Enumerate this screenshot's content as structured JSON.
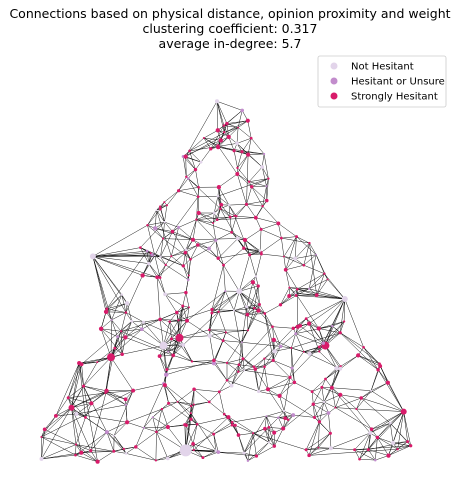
{
  "chart_data": {
    "type": "scatter",
    "title": "Connections based on physical distance, opinion proximity and weight",
    "subtitle_lines": [
      "clustering coefficient: 0.317",
      "average in-degree: 5.7"
    ],
    "xlabel": "",
    "ylabel": "",
    "axes_visible": false,
    "grid": false,
    "legend_placement": "top-right",
    "edge_color": "#000000",
    "categories": [
      {
        "name": "Not Hesitant",
        "color": "#e2d4ea"
      },
      {
        "name": "Hesitant or Unsure",
        "color": "#c28ccc"
      },
      {
        "name": "Strongly Hesitant",
        "color": "#d81b6a"
      }
    ],
    "layout": "triangle",
    "triangle_vertices": [
      [
        0.0,
        0.0
      ],
      [
        1.0,
        0.0
      ],
      [
        0.5,
        1.0
      ]
    ],
    "hubs": [
      {
        "x": 0.38,
        "y": 0.32,
        "category": "Strongly Hesitant",
        "size": 4
      },
      {
        "x": 0.53,
        "y": 0.44,
        "category": "Not Hesitant",
        "size": 3
      },
      {
        "x": 0.34,
        "y": 0.3,
        "category": "Not Hesitant",
        "size": 4
      },
      {
        "x": 0.21,
        "y": 0.27,
        "category": "Strongly Hesitant",
        "size": 4
      },
      {
        "x": 0.39,
        "y": 0.03,
        "category": "Not Hesitant",
        "size": 6
      },
      {
        "x": 0.17,
        "y": 0.53,
        "category": "Not Hesitant",
        "size": 3
      },
      {
        "x": 0.74,
        "y": 0.3,
        "category": "Strongly Hesitant",
        "size": 4
      },
      {
        "x": 0.79,
        "y": 0.42,
        "category": "Not Hesitant",
        "size": 3
      },
      {
        "x": 0.11,
        "y": 0.14,
        "category": "Strongly Hesitant",
        "size": 3
      },
      {
        "x": 0.93,
        "y": 0.13,
        "category": "Strongly Hesitant",
        "size": 3
      }
    ]
  }
}
